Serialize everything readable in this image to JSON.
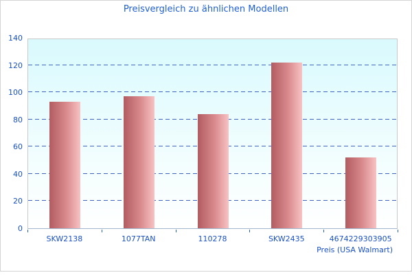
{
  "chart_data": {
    "type": "bar",
    "title": "Preisvergleich zu ähnlichen Modellen",
    "categories": [
      "SKW2138",
      "1077TAN",
      "110278",
      "SKW2435",
      "4674229303905"
    ],
    "values": [
      93,
      97,
      84,
      122,
      52
    ],
    "xlabel": "Preis (USA Walmart)",
    "ylabel": "",
    "ylim": [
      0,
      140
    ],
    "ytick_interval": 20,
    "grid": "horizontal-dashed",
    "legend": "none",
    "colors": {
      "title_text": "#1f5fd6",
      "axis_text": "#1950c8",
      "gridline": "#3b62c4",
      "bar_gradient_left": "#b25c61",
      "bar_gradient_right": "#f8c2c3",
      "plot_bg_top": "#d9fafd",
      "plot_bg_bottom": "#ffffff",
      "plot_border": "#c9c9c9",
      "axis_line": "#9fb6cc",
      "frame_border": "#d4d4d4"
    }
  }
}
